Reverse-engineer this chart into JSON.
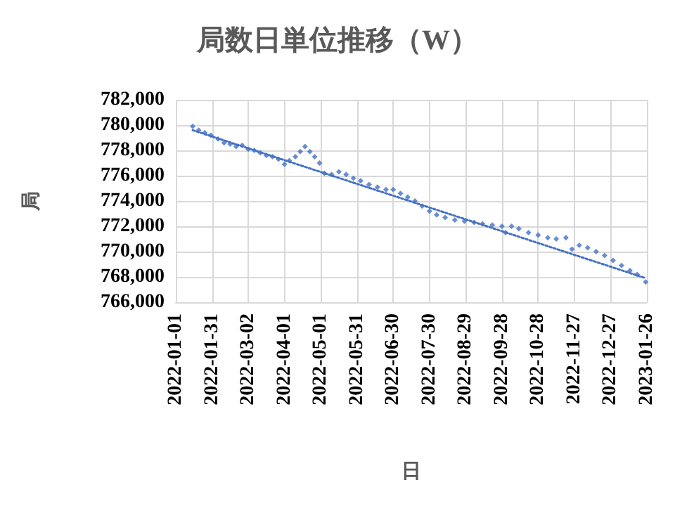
{
  "chart_data": {
    "type": "scatter",
    "title": "局数日単位推移（W）",
    "xlabel": "日",
    "ylabel": "局",
    "ylim": [
      766000,
      782000
    ],
    "yticks": [
      {
        "value": 766000,
        "label": "766,000"
      },
      {
        "value": 768000,
        "label": "768,000"
      },
      {
        "value": 770000,
        "label": "770,000"
      },
      {
        "value": 772000,
        "label": "772,000"
      },
      {
        "value": 774000,
        "label": "774,000"
      },
      {
        "value": 776000,
        "label": "776,000"
      },
      {
        "value": 778000,
        "label": "778,000"
      },
      {
        "value": 780000,
        "label": "780,000"
      },
      {
        "value": 782000,
        "label": "782,000"
      }
    ],
    "xlim": [
      "2022-01-01",
      "2023-01-26"
    ],
    "xticks": [
      "2022-01-01",
      "2022-01-31",
      "2022-03-02",
      "2022-04-01",
      "2022-05-01",
      "2022-05-31",
      "2022-06-30",
      "2022-07-30",
      "2022-08-29",
      "2022-09-28",
      "2022-10-28",
      "2022-11-27",
      "2022-12-27",
      "2023-01-26"
    ],
    "grid": true,
    "marker": "diamond",
    "series": [
      {
        "color": "#4472c4",
        "x": [
          "2022-01-15",
          "2022-01-20",
          "2022-01-25",
          "2022-01-30",
          "2022-02-05",
          "2022-02-10",
          "2022-02-15",
          "2022-02-20",
          "2022-02-25",
          "2022-03-02",
          "2022-03-07",
          "2022-03-12",
          "2022-03-17",
          "2022-03-22",
          "2022-03-27",
          "2022-04-01",
          "2022-04-05",
          "2022-04-10",
          "2022-04-14",
          "2022-04-18",
          "2022-04-22",
          "2022-04-26",
          "2022-04-30",
          "2022-05-04",
          "2022-05-10",
          "2022-05-16",
          "2022-05-22",
          "2022-05-28",
          "2022-06-03",
          "2022-06-10",
          "2022-06-17",
          "2022-06-24",
          "2022-06-30",
          "2022-07-06",
          "2022-07-12",
          "2022-07-18",
          "2022-07-24",
          "2022-07-30",
          "2022-08-05",
          "2022-08-12",
          "2022-08-20",
          "2022-08-28",
          "2022-09-05",
          "2022-09-12",
          "2022-09-20",
          "2022-09-28",
          "2022-10-01",
          "2022-10-06",
          "2022-10-12",
          "2022-10-20",
          "2022-10-28",
          "2022-11-05",
          "2022-11-12",
          "2022-11-20",
          "2022-11-25",
          "2022-12-01",
          "2022-12-08",
          "2022-12-15",
          "2022-12-22",
          "2022-12-29",
          "2023-01-05",
          "2023-01-12",
          "2023-01-18",
          "2023-01-25"
        ],
        "values": [
          779900,
          779600,
          779400,
          779200,
          778900,
          778600,
          778500,
          778300,
          778400,
          778100,
          778000,
          777800,
          777600,
          777500,
          777300,
          776900,
          777200,
          777500,
          777900,
          778300,
          777900,
          777500,
          777000,
          776200,
          776100,
          776300,
          776100,
          775800,
          775600,
          775300,
          775100,
          774900,
          774900,
          774600,
          774300,
          774000,
          773600,
          773200,
          772900,
          772700,
          772500,
          772400,
          772300,
          772200,
          772100,
          772000,
          771500,
          772000,
          771800,
          771500,
          771300,
          771100,
          771000,
          771100,
          770200,
          770500,
          770300,
          770000,
          769700,
          769300,
          768900,
          768500,
          768200,
          767600
        ]
      },
      {
        "type": "line",
        "color": "#4472c4",
        "line_style": "dotted",
        "marker": "none",
        "x": [
          "2022-01-15",
          "2023-01-25"
        ],
        "values": [
          779600,
          767900
        ]
      }
    ]
  }
}
